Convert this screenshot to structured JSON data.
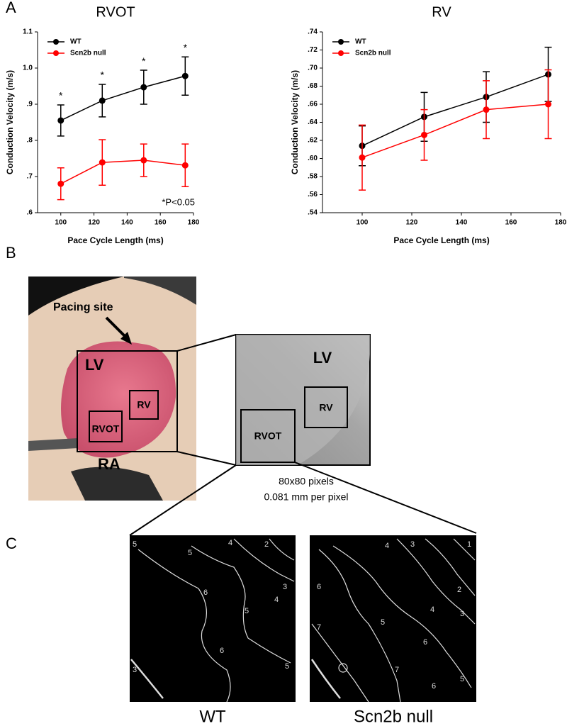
{
  "chart_data": [
    {
      "type": "line",
      "title": "RVOT",
      "x_label": "Pace Cycle Length (ms)",
      "y_label": "Conduction Velocity (m/s)",
      "x": [
        100,
        125,
        150,
        175
      ],
      "xlim": [
        86,
        180
      ],
      "xticks": [
        100,
        120,
        140,
        160,
        180
      ],
      "ylim": [
        0.6,
        1.1
      ],
      "yticks": [
        {
          "value": 0.6,
          "label": ".6"
        },
        {
          "value": 0.7,
          "label": ".7"
        },
        {
          "value": 0.8,
          "label": ".8"
        },
        {
          "value": 0.9,
          "label": ".9"
        },
        {
          "value": 1.0,
          "label": "1.0"
        },
        {
          "value": 1.1,
          "label": "1.1"
        }
      ],
      "series": [
        {
          "name": "WT",
          "color": "#000000",
          "values": [
            0.855,
            0.91,
            0.947,
            0.978
          ],
          "errors": [
            0.043,
            0.045,
            0.047,
            0.053
          ]
        },
        {
          "name": "Scn2b null",
          "color": "#ff0000",
          "values": [
            0.68,
            0.739,
            0.745,
            0.731
          ],
          "errors": [
            0.044,
            0.063,
            0.045,
            0.059
          ]
        }
      ],
      "annotations": [
        "*",
        "*",
        "*",
        "*"
      ],
      "note": "*P<0.05",
      "legend": "upper left"
    },
    {
      "type": "line",
      "title": "RV",
      "x_label": "Pace Cycle Length (ms)",
      "y_label": "Conduction Velocity (m/s)",
      "x": [
        100,
        125,
        150,
        175
      ],
      "xlim": [
        84,
        180
      ],
      "xticks": [
        100,
        120,
        140,
        160,
        180
      ],
      "ylim": [
        0.54,
        0.74
      ],
      "yticks": [
        {
          "value": 0.54,
          "label": ".54"
        },
        {
          "value": 0.56,
          "label": ".56"
        },
        {
          "value": 0.58,
          "label": ".58"
        },
        {
          "value": 0.6,
          "label": ".60"
        },
        {
          "value": 0.62,
          "label": ".62"
        },
        {
          "value": 0.64,
          "label": ".64"
        },
        {
          "value": 0.66,
          "label": ".66"
        },
        {
          "value": 0.68,
          "label": ".68"
        },
        {
          "value": 0.7,
          "label": ".70"
        },
        {
          "value": 0.72,
          "label": ".72"
        },
        {
          "value": 0.74,
          "label": ".74"
        }
      ],
      "series": [
        {
          "name": "WT",
          "color": "#000000",
          "values": [
            0.614,
            0.646,
            0.668,
            0.693
          ],
          "errors": [
            0.022,
            0.027,
            0.028,
            0.03
          ]
        },
        {
          "name": "Scn2b null",
          "color": "#ff0000",
          "values": [
            0.601,
            0.626,
            0.654,
            0.66
          ],
          "errors": [
            0.036,
            0.028,
            0.032,
            0.038
          ]
        }
      ],
      "legend": "upper left"
    }
  ],
  "panel_labels": [
    "A",
    "B",
    "C"
  ],
  "photo": {
    "pacing_site": "Pacing site",
    "lv": "LV",
    "rv": "RV",
    "rvot": "RVOT",
    "ra": "RA"
  },
  "zoom": {
    "lv": "LV",
    "rv": "RV",
    "rvot": "RVOT",
    "size": "80x80 pixels",
    "scale": "0.081 mm per pixel"
  },
  "maps": [
    {
      "caption": "WT",
      "contour_labels": [
        "5",
        "5",
        "4",
        "2",
        "3",
        "4",
        "6",
        "5",
        "6",
        "5",
        "3"
      ]
    },
    {
      "caption": "Scn2b null",
      "contour_labels": [
        "1",
        "3",
        "4",
        "6",
        "2",
        "3",
        "7",
        "4",
        "5",
        "6",
        "7",
        "5",
        "6"
      ]
    }
  ]
}
